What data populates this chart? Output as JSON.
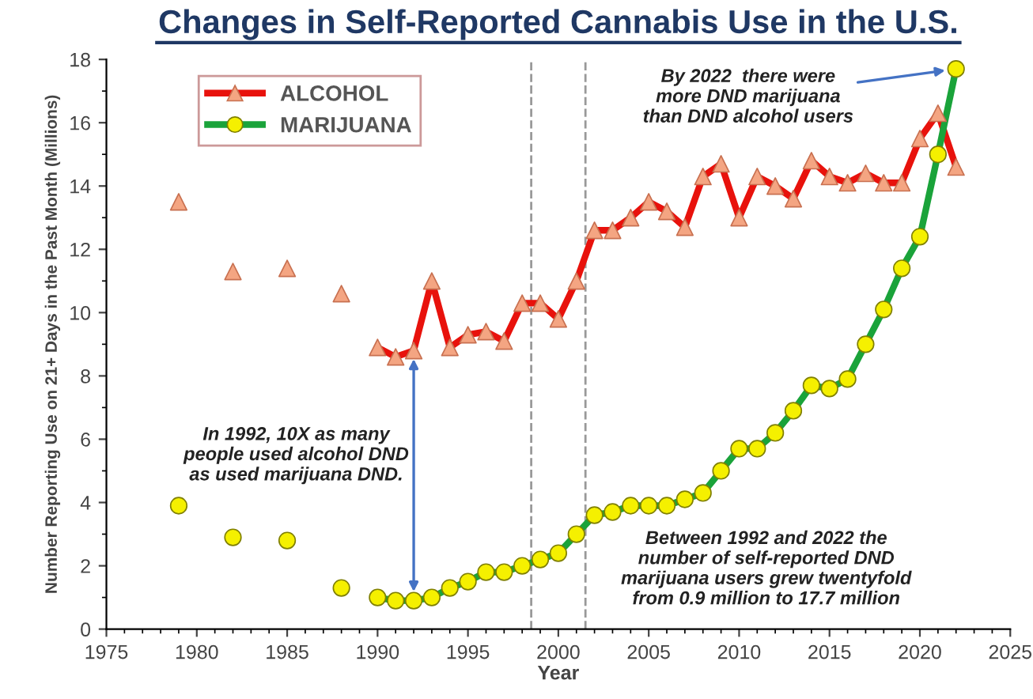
{
  "chart_data": {
    "type": "line",
    "title": "Changes in Self-Reported Cannabis Use in the U.S.",
    "xlabel": "Year",
    "ylabel": "Number Reporting Use on 21+ Days in the Past Month (Millions)",
    "xlim": [
      1975,
      2025
    ],
    "xticks": [
      1975,
      1980,
      1985,
      1990,
      1995,
      2000,
      2005,
      2010,
      2015,
      2020,
      2025
    ],
    "ylim": [
      0,
      18
    ],
    "yticks": [
      0,
      2,
      4,
      6,
      8,
      10,
      12,
      14,
      16,
      18
    ],
    "grid": false,
    "legend": "top left",
    "marker": "circle",
    "series": [
      {
        "name": "ALCOHOL",
        "marker": "triangle",
        "color": "#e8120c",
        "colors": [
          "#f4a582",
          "#f4a582",
          "#f4a582",
          "#f4a582",
          "#f4a582",
          "#f4a582",
          "#f4a582",
          "#f4a582",
          "#f4a582",
          "#f4a582",
          "#f4a582",
          "#f4a582",
          "#f4a582",
          "#f4a582",
          "#f4a582",
          "#f4a582",
          "#f4a582",
          "#f4a582",
          "#f4a582",
          "#f4a582",
          "#f4a582",
          "#f4a582",
          "#f4a582",
          "#f4a582",
          "#f4a582",
          "#f4a582",
          "#f4a582",
          "#f4a582",
          "#f4a582",
          "#f4a582",
          "#f4a582",
          "#f4a582",
          "#f4a582"
        ],
        "x": [
          1990,
          1991,
          1992,
          1993,
          1994,
          1995,
          1996,
          1997,
          1998,
          1999,
          2000,
          2001,
          2002,
          2003,
          2004,
          2005,
          2006,
          2007,
          2008,
          2009,
          2010,
          2011,
          2012,
          2013,
          2014,
          2015,
          2016,
          2017,
          2018,
          2019,
          2020,
          2021,
          2022
        ],
        "values": [
          8.9,
          8.6,
          8.8,
          11.0,
          8.9,
          9.3,
          9.4,
          9.1,
          10.3,
          10.3,
          9.8,
          11.0,
          12.6,
          12.6,
          13.0,
          13.5,
          13.2,
          12.7,
          14.3,
          14.7,
          13.0,
          14.3,
          14.0,
          13.6,
          14.8,
          14.3,
          14.1,
          14.4,
          14.1,
          14.1,
          15.5,
          16.3,
          14.6
        ]
      },
      {
        "name": "MARIJUANA",
        "color": "#1aa33a",
        "colors": [
          "#f5f000",
          "#f5f000",
          "#f5f000",
          "#f5f000",
          "#f5f000",
          "#f5f000",
          "#f5f000",
          "#f5f000",
          "#f5f000",
          "#f5f000",
          "#f5f000",
          "#f5f000",
          "#f5f000",
          "#f5f000",
          "#f5f000",
          "#f5f000",
          "#f5f000",
          "#f5f000",
          "#f5f000",
          "#f5f000",
          "#f5f000",
          "#f5f000",
          "#f5f000",
          "#f5f000",
          "#f5f000",
          "#f5f000",
          "#f5f000",
          "#f5f000",
          "#f5f000",
          "#f5f000",
          "#f5f000",
          "#f5f000",
          "#f5f000"
        ],
        "x": [
          1990,
          1991,
          1992,
          1993,
          1994,
          1995,
          1996,
          1997,
          1998,
          1999,
          2000,
          2001,
          2002,
          2003,
          2004,
          2005,
          2006,
          2007,
          2008,
          2009,
          2010,
          2011,
          2012,
          2013,
          2014,
          2015,
          2016,
          2017,
          2018,
          2019,
          2020,
          2021,
          2022
        ],
        "values": [
          1.0,
          0.9,
          0.9,
          1.0,
          1.3,
          1.5,
          1.8,
          1.8,
          2.0,
          2.2,
          2.4,
          3.0,
          3.6,
          3.7,
          3.9,
          3.9,
          3.9,
          4.1,
          4.3,
          5.0,
          5.7,
          5.7,
          6.2,
          6.9,
          7.7,
          7.6,
          7.9,
          9.0,
          10.1,
          11.4,
          12.4,
          15.0,
          17.7
        ]
      },
      {
        "type": "scatter",
        "marker": "triangle",
        "color": "#f4a582",
        "x": [
          1979,
          1982,
          1985,
          1988
        ],
        "values": [
          13.5,
          11.3,
          11.4,
          10.6
        ]
      },
      {
        "type": "scatter",
        "marker": "circle",
        "color": "#f5f000",
        "x": [
          1979,
          1982,
          1985,
          1988
        ],
        "values": [
          3.9,
          2.9,
          2.8,
          1.3
        ]
      }
    ],
    "ref_lines": [
      {
        "axis": "x",
        "value": 1998.5,
        "color": "#999999",
        "line_style": "dashed"
      },
      {
        "axis": "x",
        "value": 2001.5,
        "color": "#999999",
        "line_style": "dashed"
      }
    ],
    "annotations": [
      "In 1992, 10X as many\npeople used alcohol DND\nas used marijuana DND.",
      {
        "text": "By 2022  there were\nmore DND marijuana\nthan DND alcohol users",
        "x": 2022,
        "y": 17.7
      },
      "Between 1992 and 2022 the\nnumber of self-reported DND\nmarijuana users grew twentyfold\nfrom 0.9 million to 17.7 million"
    ]
  }
}
